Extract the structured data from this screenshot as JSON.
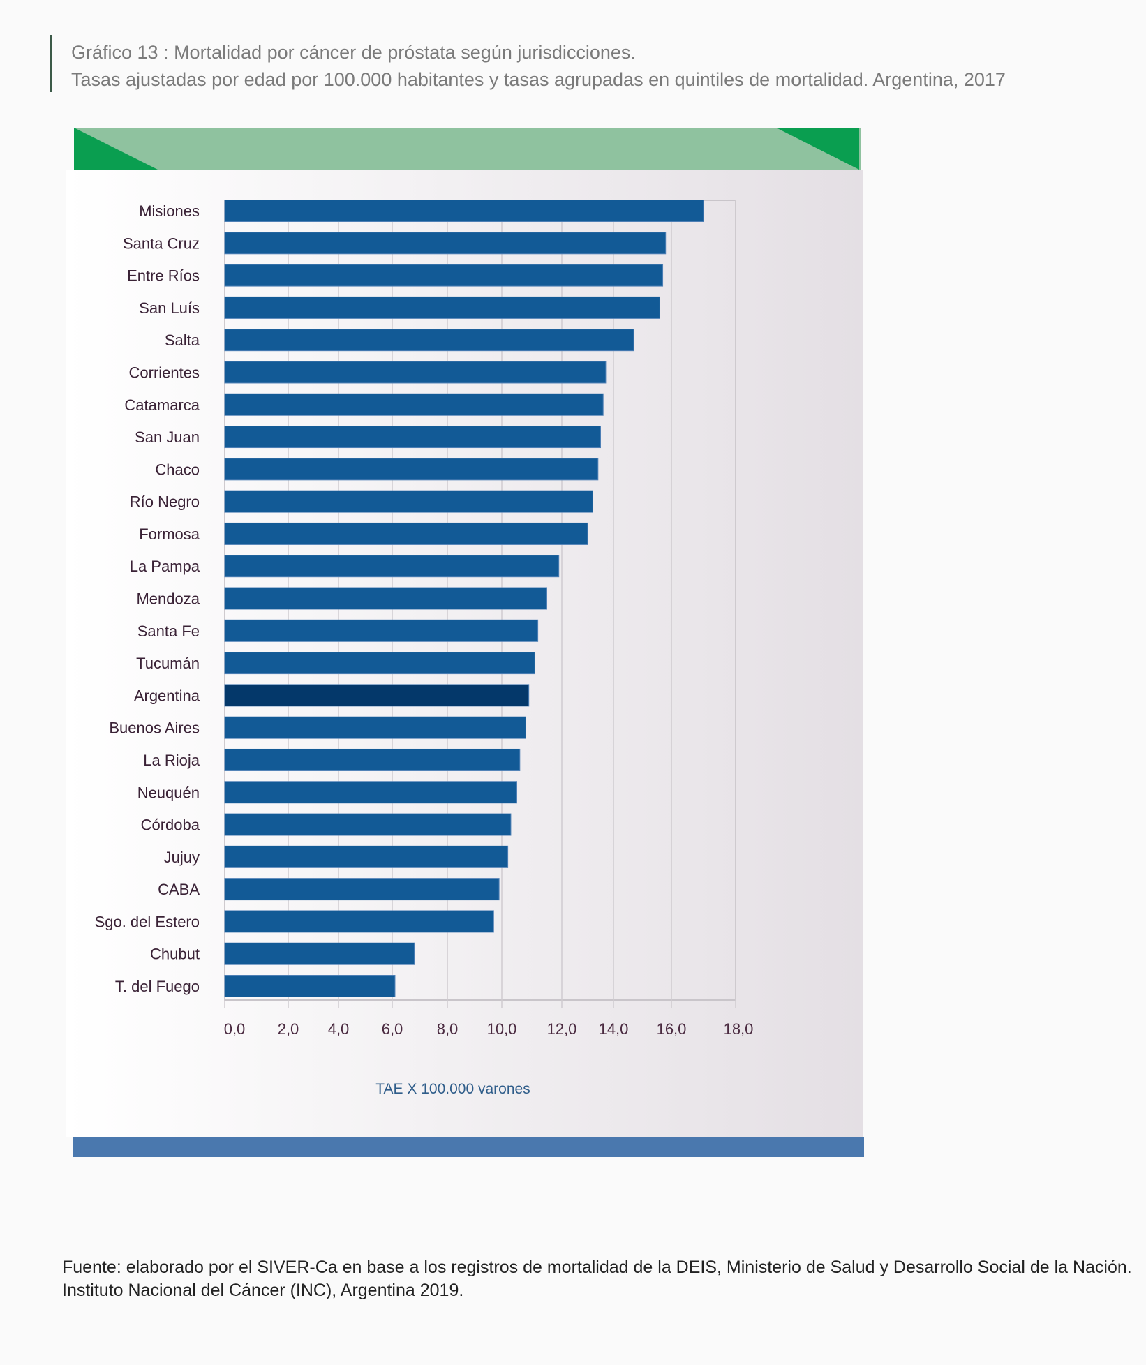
{
  "title": {
    "line1": "Gráfico 13 : Mortalidad por cáncer de próstata según jurisdicciones.",
    "line2": "Tasas ajustadas por edad por 100.000 habitantes y tasas agrupadas en quintiles de mortalidad. Argentina, 2017"
  },
  "chart_data": {
    "type": "bar",
    "orientation": "horizontal",
    "title": "Mortalidad por cáncer de próstata según jurisdicciones",
    "xlabel": "TAE X 100.000 varones",
    "ylabel": "",
    "xlim": [
      0,
      18
    ],
    "grid": true,
    "x_ticks": [
      "0,0",
      "2,0",
      "4,0",
      "6,0",
      "8,0",
      "10,0",
      "12,0",
      "14,0",
      "16,0",
      "18,0"
    ],
    "categories": [
      "Misiones",
      "Santa Cruz",
      "Entre Ríos",
      "San Luís",
      "Salta",
      "Corrientes",
      "Catamarca",
      "San Juan",
      "Chaco",
      "Río Negro",
      "Formosa",
      "La Pampa",
      "Mendoza",
      "Santa Fe",
      "Tucumán",
      "Argentina",
      "Buenos Aires",
      "La Rioja",
      "Neuquén",
      "Córdoba",
      "Jujuy",
      "CABA",
      "Sgo. del Estero",
      "Chubut",
      "T. del Fuego"
    ],
    "values": [
      17.0,
      15.8,
      15.7,
      15.6,
      14.7,
      13.7,
      13.6,
      13.5,
      13.4,
      13.2,
      13.0,
      11.9,
      11.5,
      11.2,
      11.1,
      10.9,
      10.8,
      10.6,
      10.5,
      10.3,
      10.2,
      9.9,
      9.7,
      6.8,
      6.1
    ],
    "highlight": "Argentina",
    "colors": {
      "bar": "#125a96",
      "highlight": "#04386a",
      "grid": "#cfcbd0"
    }
  },
  "footer": {
    "line1": "Fuente: elaborado por el SIVER-Ca en base a los registros de mortalidad de la DEIS, Ministerio de Salud y Desarrollo Social de la Nación.",
    "line2": "Instituto Nacional del Cáncer (INC), Argentina 2019."
  }
}
